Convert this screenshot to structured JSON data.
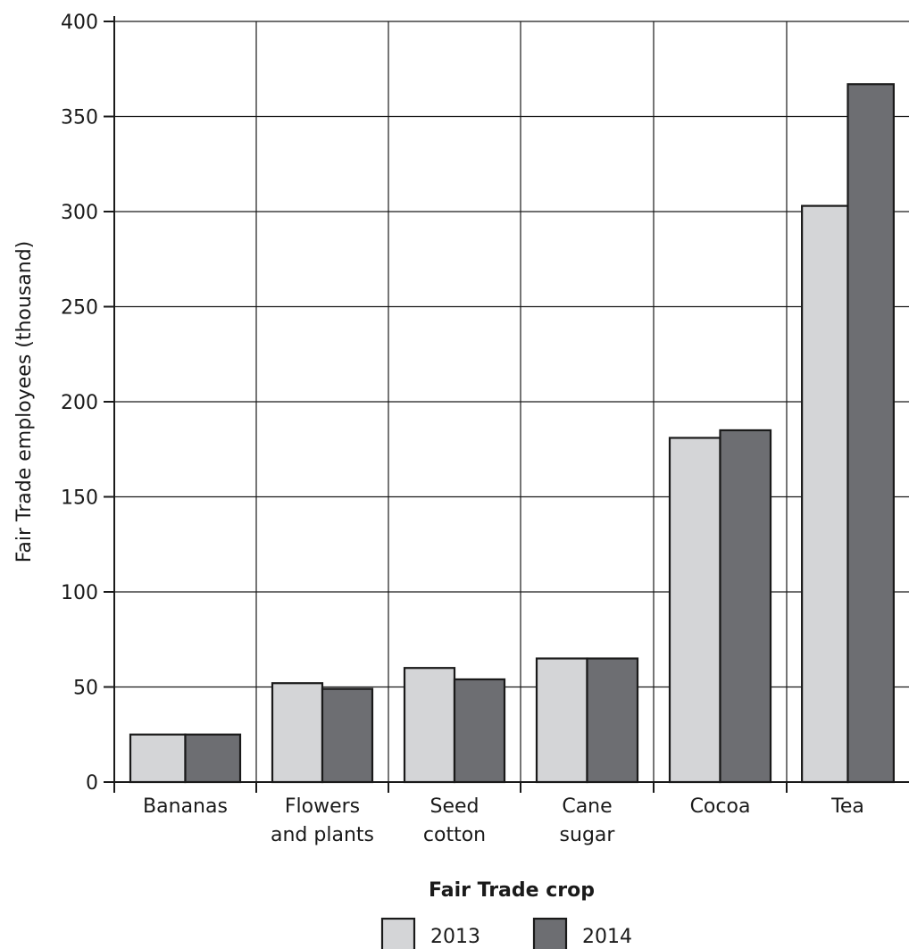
{
  "chart_data": {
    "type": "bar",
    "title": "",
    "xlabel": "Fair Trade crop",
    "ylabel": "Fair Trade employees (thousand)",
    "ylim": [
      0,
      400
    ],
    "yticks": [
      0,
      50,
      100,
      150,
      200,
      250,
      300,
      350,
      400
    ],
    "grid": true,
    "legend_position": "bottom-center",
    "categories": [
      [
        "Bananas"
      ],
      [
        "Flowers",
        "and plants"
      ],
      [
        "Seed",
        "cotton"
      ],
      [
        "Cane",
        "sugar"
      ],
      [
        "Cocoa"
      ],
      [
        "Tea"
      ]
    ],
    "series": [
      {
        "name": "2013",
        "color": "#d4d5d7",
        "values": [
          25,
          52,
          60,
          65,
          181,
          303
        ]
      },
      {
        "name": "2014",
        "color": "#6d6e72",
        "values": [
          25,
          49,
          54,
          65,
          185,
          367
        ]
      }
    ]
  }
}
